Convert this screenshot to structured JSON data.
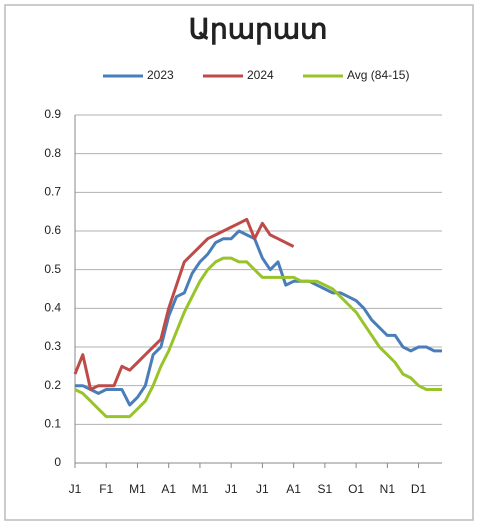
{
  "chart_data": {
    "type": "line",
    "title": "Արարատ",
    "categories": [
      "J1",
      null,
      null,
      null,
      "F1",
      null,
      null,
      null,
      "M1",
      null,
      null,
      null,
      "A1",
      null,
      null,
      null,
      "M1",
      null,
      null,
      null,
      "J1",
      null,
      null,
      null,
      "J1",
      null,
      null,
      null,
      "A1",
      null,
      null,
      null,
      "S1",
      null,
      null,
      null,
      "O1",
      null,
      null,
      null,
      "N1",
      null,
      null,
      null,
      "D1",
      null,
      null,
      null
    ],
    "series": [
      {
        "name": "2023",
        "color": "#4a7ebb",
        "values": [
          0.2,
          0.2,
          0.19,
          0.18,
          0.19,
          0.19,
          0.19,
          0.15,
          0.17,
          0.2,
          0.28,
          0.3,
          0.38,
          0.43,
          0.44,
          0.49,
          0.52,
          0.54,
          0.57,
          0.58,
          0.58,
          0.6,
          0.59,
          0.58,
          0.53,
          0.5,
          0.52,
          0.46,
          0.47,
          0.47,
          0.47,
          0.46,
          0.45,
          0.44,
          0.44,
          0.43,
          0.42,
          0.4,
          0.37,
          0.35,
          0.33,
          0.33,
          0.3,
          0.29,
          0.3,
          0.3,
          0.29,
          0.29
        ]
      },
      {
        "name": "2024",
        "color": "#be4b48",
        "values": [
          0.23,
          0.28,
          0.19,
          0.2,
          0.2,
          0.2,
          0.25,
          0.24,
          0.26,
          0.28,
          0.3,
          0.32,
          0.4,
          0.46,
          0.52,
          0.54,
          0.56,
          0.58,
          0.59,
          0.6,
          0.61,
          0.62,
          0.63,
          0.58,
          0.62,
          0.59,
          0.58,
          0.57,
          0.56,
          null,
          null,
          null,
          null,
          null,
          null,
          null,
          null,
          null,
          null,
          null,
          null,
          null,
          null,
          null,
          null,
          null,
          null,
          null
        ]
      },
      {
        "name": "Avg (84-15)",
        "color": "#98c42a",
        "values": [
          0.19,
          0.18,
          0.16,
          0.14,
          0.12,
          0.12,
          0.12,
          0.12,
          0.14,
          0.16,
          0.2,
          0.25,
          0.29,
          0.34,
          0.39,
          0.43,
          0.47,
          0.5,
          0.52,
          0.53,
          0.53,
          0.52,
          0.52,
          0.5,
          0.48,
          0.48,
          0.48,
          0.48,
          0.48,
          0.47,
          0.47,
          0.47,
          0.46,
          0.45,
          0.43,
          0.41,
          0.39,
          0.36,
          0.33,
          0.3,
          0.28,
          0.26,
          0.23,
          0.22,
          0.2,
          0.19,
          0.19,
          0.19
        ]
      }
    ],
    "ylim": [
      0,
      0.9
    ],
    "yticks": [
      0,
      0.1,
      0.2,
      0.3,
      0.4,
      0.5,
      0.6,
      0.7,
      0.8,
      0.9
    ],
    "grid": true,
    "legend": "top"
  }
}
